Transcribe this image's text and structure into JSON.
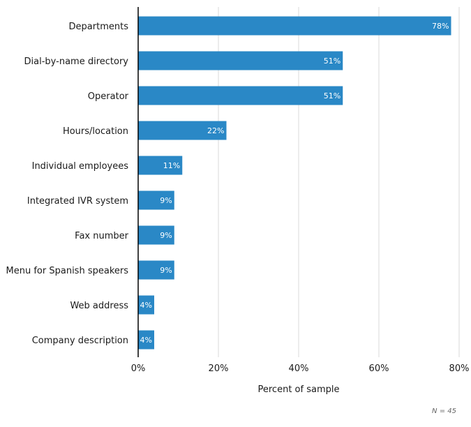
{
  "chart_data": {
    "type": "bar",
    "orientation": "horizontal",
    "title": "",
    "xlabel": "Percent of sample",
    "ylabel": "",
    "xlim": [
      0,
      80
    ],
    "x_ticks": [
      0,
      20,
      40,
      60,
      80
    ],
    "x_tick_labels": [
      "0%",
      "20%",
      "40%",
      "60%",
      "80%"
    ],
    "grid": "vertical",
    "categories": [
      "Departments",
      "Dial-by-name directory",
      "Operator",
      "Hours/location",
      "Individual employees",
      "Integrated IVR system",
      "Fax number",
      "Menu for Spanish speakers",
      "Web address",
      "Company description"
    ],
    "values": [
      78,
      51,
      51,
      22,
      11,
      9,
      9,
      9,
      4,
      4
    ],
    "data_labels": [
      "78%",
      "51%",
      "51%",
      "22%",
      "11%",
      "9%",
      "9%",
      "9%",
      "4%",
      "4%"
    ],
    "bar_color": "#2a88c6",
    "note": "N = 45"
  }
}
